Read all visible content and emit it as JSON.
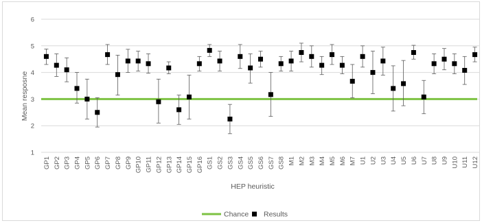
{
  "chart_data": {
    "type": "scatter",
    "xlabel": "HEP heuristic",
    "ylabel": "Mean resposne",
    "ylim": [
      1,
      6
    ],
    "yticks": [
      1,
      2,
      3,
      4,
      5,
      6
    ],
    "grid": true,
    "legend_position": "bottom",
    "reference_line": {
      "name": "Chance",
      "value": 3,
      "color": "#7dc242"
    },
    "series": [
      {
        "name": "Results",
        "marker_color": "#000000",
        "categories": [
          "GP1",
          "GP2",
          "GP3",
          "GP4",
          "GP5",
          "GP6",
          "GP7",
          "GP8",
          "GP9",
          "GP10",
          "GP11",
          "GP12",
          "GP13",
          "GP14",
          "GP15",
          "GP16",
          "GS1",
          "GS2",
          "GS3",
          "GS4",
          "GS5",
          "GS6",
          "GS7",
          "GS8",
          "M1",
          "M2",
          "M3",
          "M4",
          "M5",
          "M6",
          "M7",
          "U1",
          "U2",
          "U3",
          "U4",
          "U5",
          "U6",
          "U7",
          "U8",
          "U9",
          "U10",
          "U11",
          "U12"
        ],
        "values": [
          4.6,
          4.27,
          4.1,
          3.4,
          3.0,
          2.5,
          4.67,
          3.92,
          4.43,
          4.43,
          4.33,
          2.9,
          4.17,
          2.6,
          3.08,
          4.33,
          4.83,
          4.43,
          2.25,
          4.6,
          4.17,
          4.5,
          3.17,
          4.33,
          4.43,
          4.75,
          4.6,
          4.27,
          4.67,
          4.27,
          3.67,
          4.6,
          4.0,
          4.43,
          3.4,
          3.58,
          4.75,
          3.08,
          4.33,
          4.5,
          4.33,
          4.08,
          4.67
        ],
        "error_upper": [
          4.88,
          4.7,
          4.55,
          4.0,
          3.75,
          3.05,
          5.05,
          4.65,
          4.87,
          4.8,
          4.7,
          3.75,
          4.4,
          3.15,
          3.9,
          4.6,
          5.05,
          4.8,
          2.8,
          5.05,
          4.7,
          4.8,
          4.0,
          4.6,
          4.8,
          5.1,
          5.0,
          4.6,
          5.05,
          4.6,
          4.3,
          5.0,
          4.8,
          4.95,
          4.25,
          4.45,
          5.02,
          3.7,
          4.7,
          4.9,
          4.7,
          4.6,
          4.95
        ],
        "error_lower": [
          4.3,
          3.85,
          3.65,
          2.85,
          2.25,
          1.95,
          4.3,
          3.15,
          4.0,
          4.05,
          3.97,
          2.1,
          3.95,
          2.05,
          2.25,
          4.05,
          4.6,
          4.05,
          1.7,
          4.15,
          3.6,
          4.2,
          2.35,
          4.05,
          4.05,
          4.4,
          4.2,
          3.92,
          4.3,
          3.95,
          3.05,
          4.2,
          3.2,
          3.9,
          2.55,
          2.75,
          4.5,
          2.45,
          3.95,
          4.1,
          3.95,
          3.55,
          4.4
        ]
      }
    ],
    "legend": [
      {
        "name": "Chance",
        "kind": "line"
      },
      {
        "name": "Results",
        "kind": "marker"
      }
    ]
  }
}
